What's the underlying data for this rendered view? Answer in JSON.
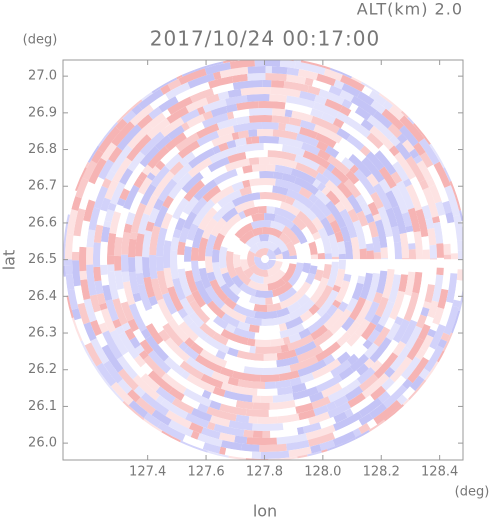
{
  "chart_data": {
    "type": "radar-ppi",
    "title": "2017/10/24 00:17:00",
    "annotation": "ALT(km) 2.0",
    "x_label": "lon",
    "y_label": "lat",
    "x_unit": "(deg)",
    "y_unit": "(deg)",
    "xlim": [
      127.11,
      128.48
    ],
    "ylim": [
      25.954,
      27.044
    ],
    "xticks": [
      127.4,
      127.6,
      127.8,
      {
        "value": 128.0,
        "label": "128.0"
      },
      128.2,
      128.4
    ],
    "yticks": [
      {
        "value": 26.0,
        "label": "26.0"
      },
      26.1,
      26.2,
      26.3,
      26.4,
      26.5,
      26.6,
      26.7,
      26.8,
      26.9,
      {
        "value": 27.0,
        "label": "27.0"
      }
    ]
  }
}
